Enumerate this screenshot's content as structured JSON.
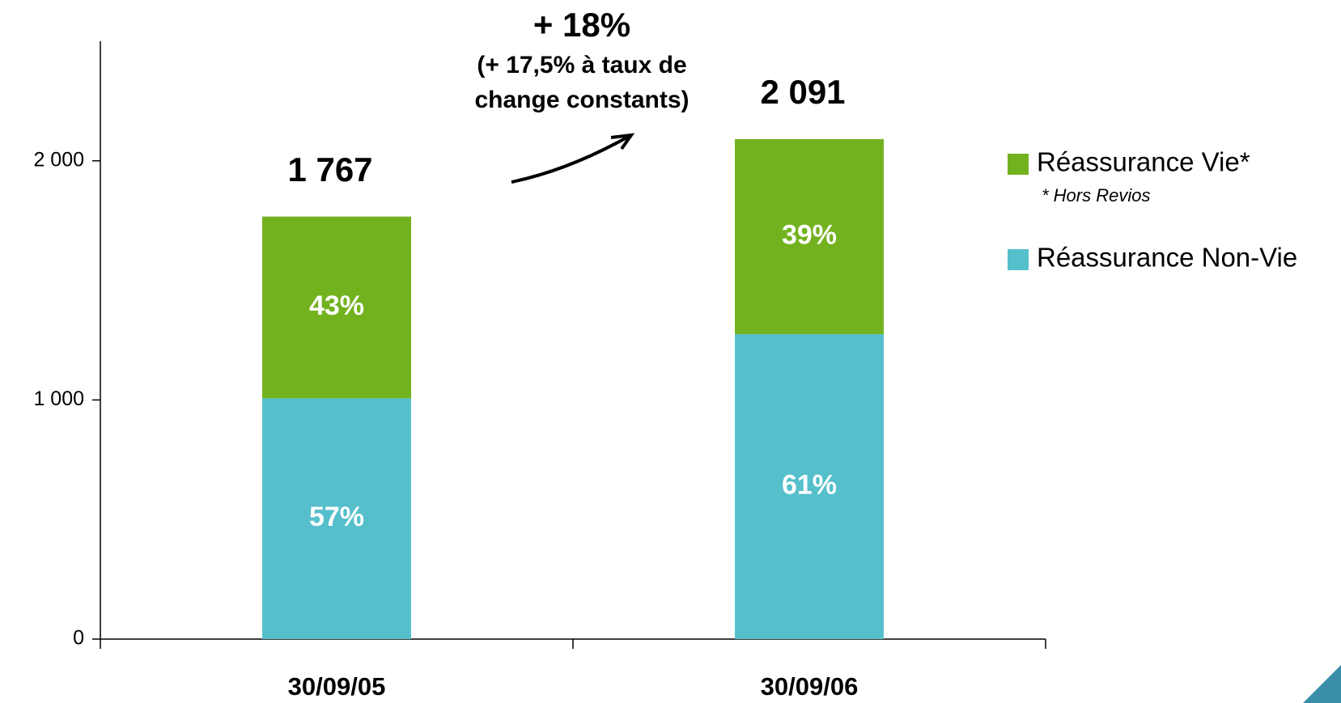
{
  "chart_data": {
    "type": "stacked_bar",
    "categories": [
      "30/09/05",
      "30/09/06"
    ],
    "series": [
      {
        "name": "Réassurance Non-Vie",
        "color": "#56bfcc",
        "values": [
          1007,
          1275
        ],
        "percent_labels": [
          "57%",
          "61%"
        ]
      },
      {
        "name": "Réassurance Vie*",
        "color": "#73b21f",
        "values": [
          760,
          816
        ],
        "percent_labels": [
          "43%",
          "39%"
        ]
      }
    ],
    "totals": [
      {
        "value": 1767,
        "label": "1 767"
      },
      {
        "value": 2091,
        "label": "2 091"
      }
    ],
    "ylim": [
      0,
      2500
    ],
    "yticks": [
      0,
      {
        "value": 1000,
        "label": "1 000"
      },
      {
        "value": 2000,
        "label": "2 000"
      }
    ],
    "legend_note": "* Hors Revios",
    "annotation": {
      "headline": "+ 18%",
      "lines": [
        "(+ 17,5% à taux de",
        "change constants)"
      ]
    },
    "legend": "right"
  }
}
